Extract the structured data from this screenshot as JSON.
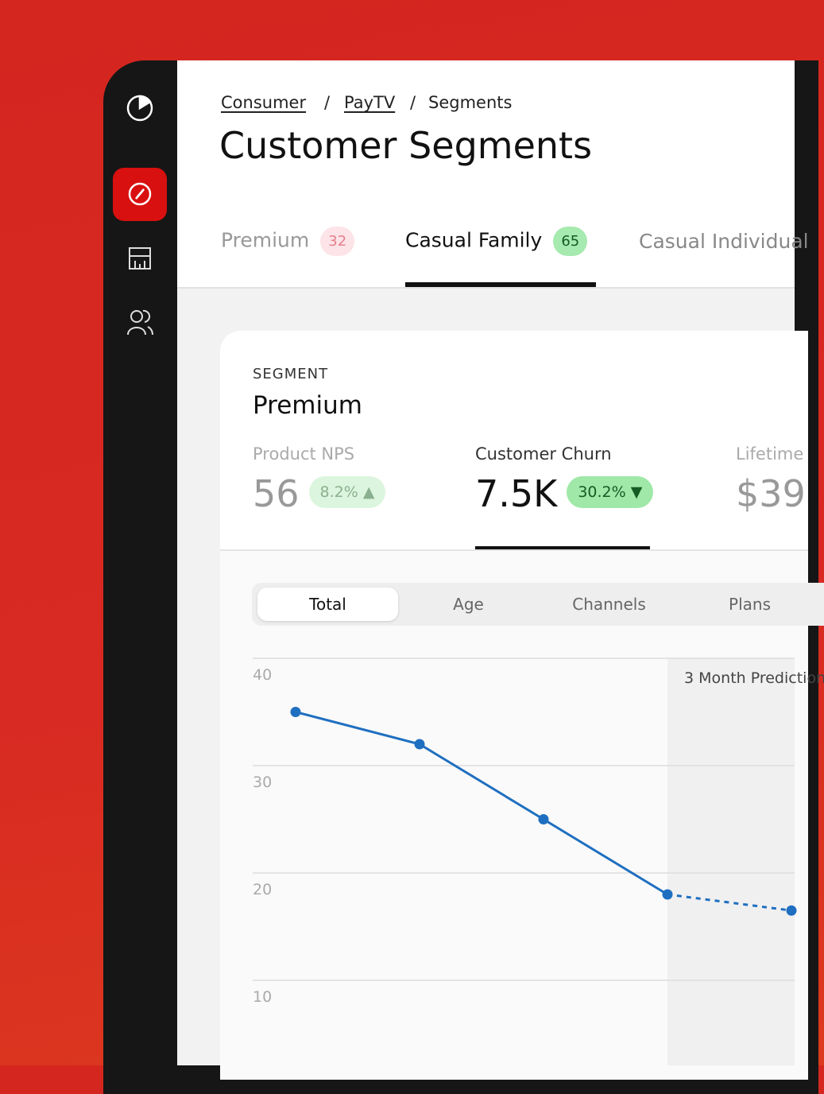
{
  "breadcrumb": {
    "items": [
      "Consumer",
      "PayTV",
      "Segments"
    ],
    "separator": "/"
  },
  "header": {
    "title": "Customer Segments"
  },
  "tabs": [
    {
      "label": "Premium",
      "count": 32
    },
    {
      "label": "Casual Family",
      "count": 65
    },
    {
      "label": "Casual Individual"
    }
  ],
  "card": {
    "eyebrow": "SEGMENT",
    "name": "Premium",
    "metrics": [
      {
        "label": "Product NPS",
        "value": 56,
        "change": "8.2%"
      },
      {
        "label": "Customer Churn",
        "value": "7.5K",
        "change": "30.2%"
      },
      {
        "label": "Lifetime",
        "value": "$39"
      }
    ],
    "views": [
      "Total",
      "Age",
      "Channels",
      "Plans"
    ]
  },
  "chart_data": {
    "type": "line",
    "annotation": "3 Month Prediction",
    "categories": [
      null,
      null,
      null,
      null,
      null
    ],
    "series": [
      {
        "color": "#1f6fc0",
        "values": [
          35,
          32,
          25,
          18,
          16.5
        ]
      }
    ],
    "forecast_from": 3,
    "ylim": [
      10,
      40
    ],
    "yticks": [
      10,
      20,
      30,
      40
    ],
    "grid": true
  }
}
